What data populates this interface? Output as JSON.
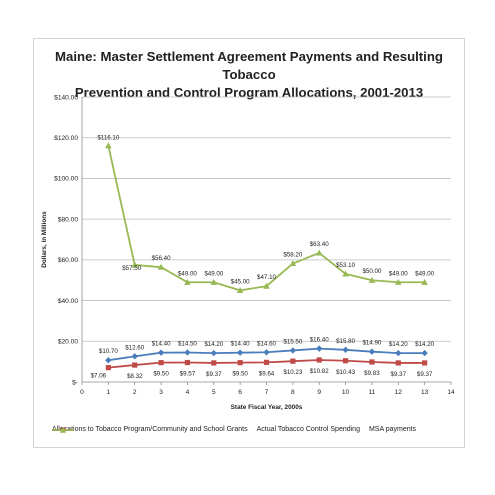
{
  "chart_data": {
    "type": "line",
    "title_line1": "Maine: Master Settlement Agreement Payments and Resulting Tobacco",
    "title_line2": "Prevention and Control Program Allocations, 2001-2013",
    "xlabel": "State Fiscal Year, 2000s",
    "ylabel": "Dollars, in Millions",
    "xlim": [
      0,
      14
    ],
    "ylim": [
      0,
      140
    ],
    "x_ticks": [
      "0",
      "1",
      "2",
      "3",
      "4",
      "5",
      "6",
      "7",
      "8",
      "9",
      "10",
      "11",
      "12",
      "13",
      "14"
    ],
    "y_ticks": [
      "$-",
      "$20.00",
      "$40.00",
      "$60.00",
      "$80.00",
      "$100.00",
      "$120.00",
      "$140.00"
    ],
    "x": [
      1,
      2,
      3,
      4,
      5,
      6,
      7,
      8,
      9,
      10,
      11,
      12,
      13
    ],
    "grid": "horizontal",
    "legend_position": "bottom",
    "series": [
      {
        "name": "Allocations to Tobacco Program/Community and School Grants",
        "color": "#4a7ebb",
        "marker": "diamond",
        "values": [
          10.7,
          12.6,
          14.4,
          14.5,
          14.2,
          14.4,
          14.6,
          15.5,
          16.4,
          15.8,
          14.9,
          14.2,
          14.2
        ],
        "labels": [
          "$10.70",
          "$12.60",
          "$14.40",
          "$14.50",
          "$14.20",
          "$14.40",
          "$14.60",
          "$15.50",
          "$16.40",
          "$15.80",
          "$14.90",
          "$14.20",
          "$14.20"
        ]
      },
      {
        "name": "Actual Tobacco Control Spending",
        "color": "#be4b48",
        "marker": "square",
        "values": [
          7.06,
          8.32,
          9.5,
          9.57,
          9.37,
          9.5,
          9.64,
          10.23,
          10.82,
          10.43,
          9.83,
          9.37,
          9.37
        ],
        "labels": [
          "$7.06",
          "$8.32",
          "$9.50",
          "$9.57",
          "$9.37",
          "$9.50",
          "$9.64",
          "$10.23",
          "$10.82",
          "$10.43",
          "$9.83",
          "$9.37",
          "$9.37"
        ]
      },
      {
        "name": "MSA payments",
        "color": "#98b954",
        "marker": "triangle",
        "values": [
          116.1,
          57.5,
          56.4,
          49.0,
          49.0,
          45.0,
          47.1,
          58.2,
          63.4,
          53.1,
          50.0,
          49.0,
          49.0
        ],
        "labels": [
          "$116.10",
          "$57.50",
          "$56.40",
          "$49.00",
          "$49.00",
          "$45.00",
          "$47.10",
          "$58.20",
          "$63.40",
          "$53.10",
          "$50.00",
          "$49.00",
          "$49.00"
        ]
      }
    ]
  }
}
